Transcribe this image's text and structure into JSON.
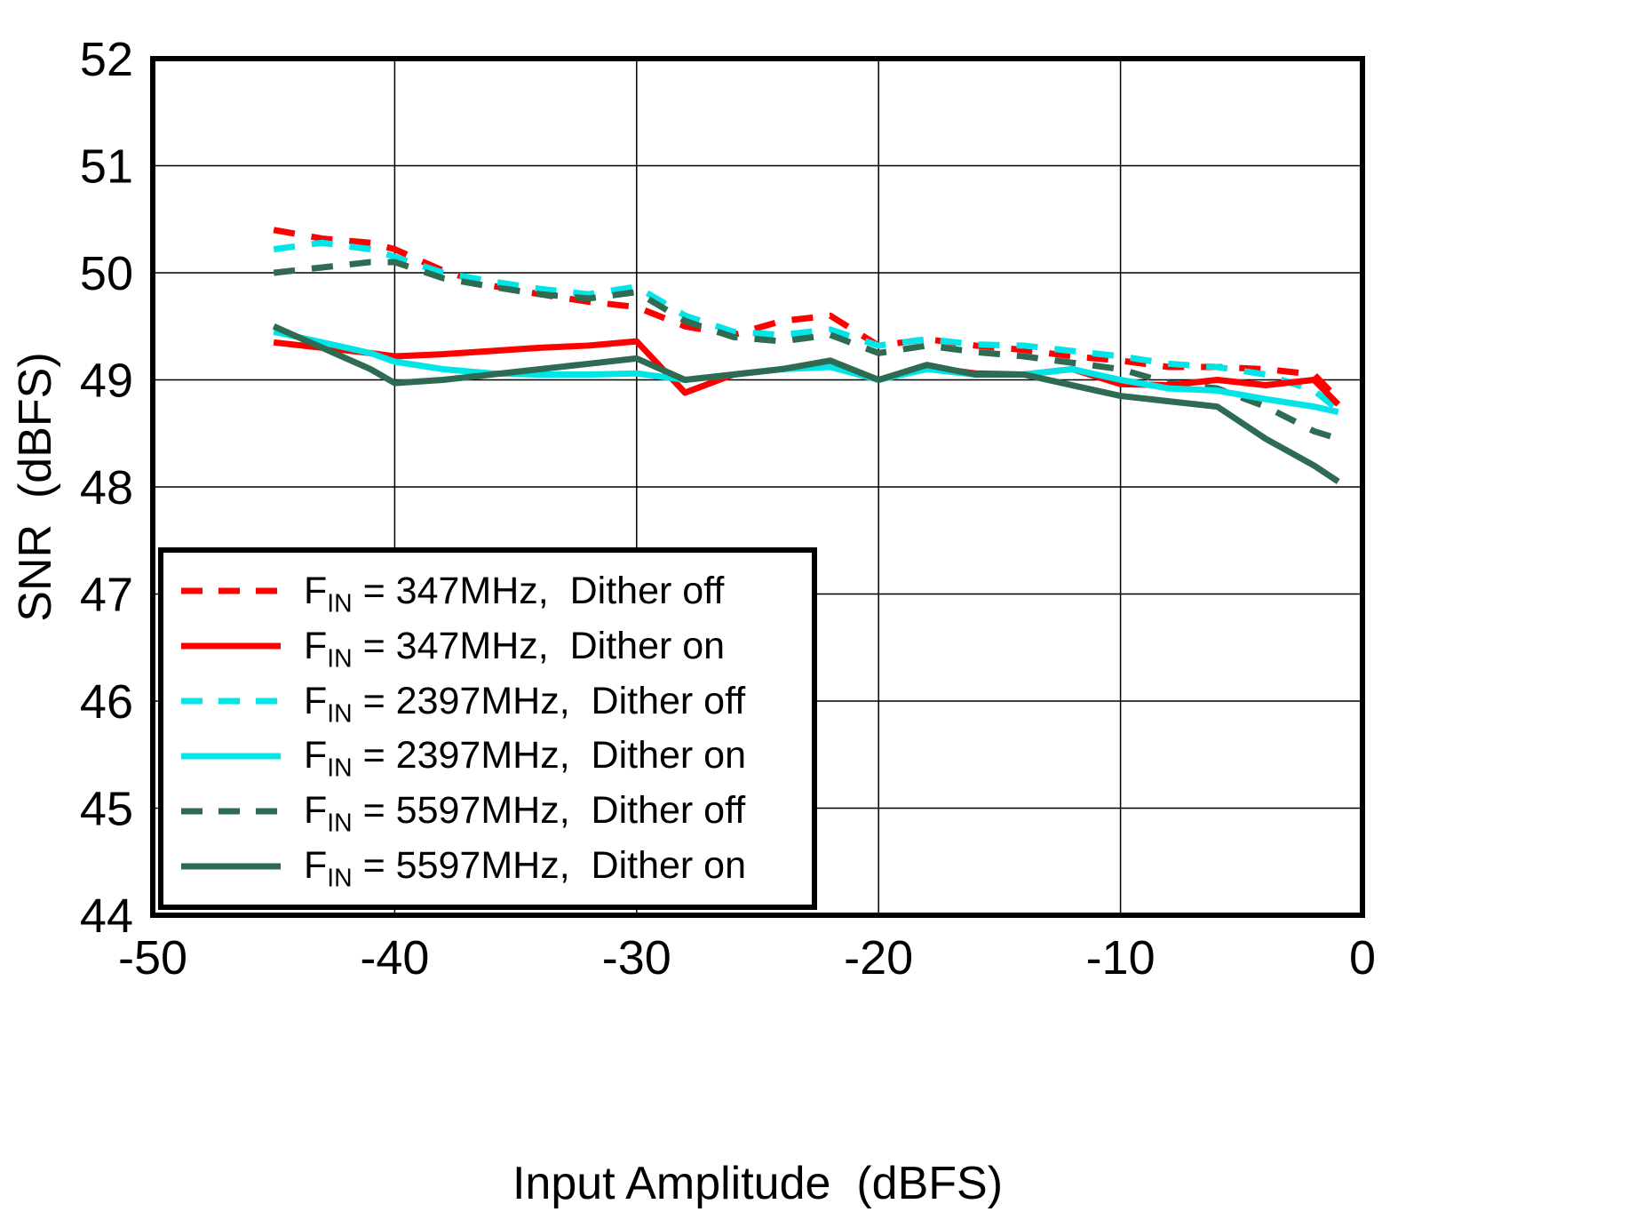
{
  "figure": {
    "background": "#FFFFFF"
  },
  "chart_data": {
    "type": "line",
    "title": "",
    "xlabel": "Input Amplitude  (dBFS)",
    "ylabel": "SNR  (dBFS)",
    "xlim": [
      -50,
      0
    ],
    "ylim": [
      44,
      52
    ],
    "x_ticks": [
      -50,
      -40,
      -30,
      -20,
      -10,
      0
    ],
    "y_ticks": [
      44,
      45,
      46,
      47,
      48,
      49,
      50,
      51,
      52
    ],
    "grid": true,
    "legend_position": "lower-left",
    "frame_color": "#000000",
    "grid_color": "#000000",
    "x": [
      -45,
      -43,
      -41,
      -40,
      -38,
      -36,
      -34,
      -32,
      -30,
      -28,
      -26,
      -24,
      -22,
      -20,
      -18,
      -16,
      -14,
      -12,
      -10,
      -8,
      -6,
      -4,
      -2,
      -1
    ],
    "series": [
      {
        "name": "fin-347mhz-dither-off",
        "f": "F",
        "sub": "IN",
        "label": " = 347MHz,  Dither off",
        "color": "#FF0000",
        "style": "dashed",
        "values": [
          50.4,
          50.32,
          50.28,
          50.22,
          50.02,
          49.88,
          49.8,
          49.73,
          49.68,
          49.5,
          49.42,
          49.55,
          49.6,
          49.32,
          49.38,
          49.32,
          49.28,
          49.22,
          49.18,
          49.12,
          49.12,
          49.1,
          49.05,
          48.82
        ]
      },
      {
        "name": "fin-347mhz-dither-on",
        "f": "F",
        "sub": "IN",
        "label": " = 347MHz,  Dither on",
        "color": "#FF0000",
        "style": "solid",
        "values": [
          49.35,
          49.3,
          49.25,
          49.22,
          49.24,
          49.27,
          49.3,
          49.32,
          49.36,
          48.88,
          49.05,
          49.1,
          49.16,
          49.0,
          49.12,
          49.06,
          49.05,
          49.1,
          48.96,
          48.95,
          49.0,
          48.95,
          49.0,
          48.77
        ]
      },
      {
        "name": "fin-2397mhz-dither-off",
        "f": "F",
        "sub": "IN",
        "label": " = 2397MHz,  Dither off",
        "color": "#00E5E5",
        "style": "dashed",
        "values": [
          50.22,
          50.28,
          50.22,
          50.15,
          50.0,
          49.92,
          49.85,
          49.8,
          49.87,
          49.6,
          49.45,
          49.42,
          49.47,
          49.32,
          49.38,
          49.33,
          49.32,
          49.27,
          49.22,
          49.15,
          49.12,
          49.05,
          48.9,
          48.72
        ]
      },
      {
        "name": "fin-2397mhz-dither-on",
        "f": "F",
        "sub": "IN",
        "label": " = 2397MHz,  Dither on",
        "color": "#00E5E5",
        "style": "solid",
        "values": [
          49.45,
          49.35,
          49.25,
          49.17,
          49.1,
          49.06,
          49.05,
          49.05,
          49.06,
          49.0,
          49.05,
          49.1,
          49.12,
          49.0,
          49.1,
          49.05,
          49.05,
          49.1,
          49.0,
          48.92,
          48.9,
          48.82,
          48.75,
          48.7
        ]
      },
      {
        "name": "fin-5597mhz-dither-off",
        "f": "F",
        "sub": "IN",
        "label": " = 5597MHz,  Dither off",
        "color": "#2F6B52",
        "style": "dashed",
        "values": [
          50.0,
          50.05,
          50.1,
          50.1,
          49.95,
          49.87,
          49.8,
          49.76,
          49.82,
          49.55,
          49.4,
          49.36,
          49.42,
          49.25,
          49.32,
          49.26,
          49.22,
          49.16,
          49.1,
          48.97,
          48.92,
          48.75,
          48.52,
          48.45
        ]
      },
      {
        "name": "fin-5597mhz-dither-on",
        "f": "F",
        "sub": "IN",
        "label": " = 5597MHz,  Dither on",
        "color": "#2F6B52",
        "style": "solid",
        "values": [
          49.5,
          49.3,
          49.1,
          48.97,
          49.0,
          49.05,
          49.1,
          49.15,
          49.2,
          49.0,
          49.05,
          49.1,
          49.18,
          49.0,
          49.14,
          49.05,
          49.05,
          48.95,
          48.85,
          48.8,
          48.75,
          48.45,
          48.2,
          48.05
        ]
      }
    ]
  }
}
